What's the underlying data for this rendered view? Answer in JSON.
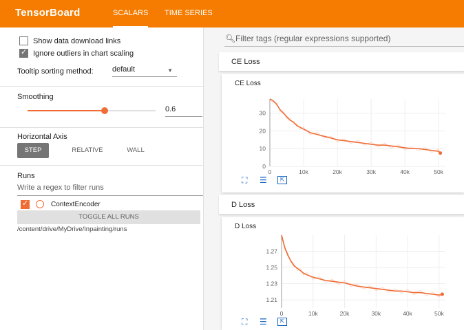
{
  "app": {
    "title": "TensorBoard"
  },
  "tabs": [
    {
      "label": "SCALARS"
    },
    {
      "label": "TIME SERIES"
    }
  ],
  "sidebar": {
    "show_download_label": "Show data download links",
    "ignore_outliers_label": "Ignore outliers in chart scaling",
    "tooltip_label": "Tooltip sorting method:",
    "tooltip_value": "default",
    "smoothing_label": "Smoothing",
    "smoothing_value": "0.6",
    "smoothing_fraction": 0.6,
    "haxis_label": "Horizontal Axis",
    "haxis_options": [
      "STEP",
      "RELATIVE",
      "WALL"
    ],
    "runs_label": "Runs",
    "runs_placeholder": "Write a regex to filter runs",
    "run_name": "ContextEncoder",
    "toggle_label": "TOGGLE ALL RUNS",
    "runs_path": "/content/drive/MyDrive/Inpainting/runs"
  },
  "main": {
    "filter_placeholder": "Filter tags (regular expressions supported)"
  },
  "colors": {
    "accent": "#f57c00",
    "series": "#ef6c35"
  },
  "chart_data": [
    {
      "type": "line",
      "group": "CE Loss",
      "title": "CE Loss",
      "x_ticks": [
        "0",
        "10k",
        "20k",
        "30k",
        "40k",
        "50k"
      ],
      "y_ticks": [
        "0",
        "10",
        "20",
        "30"
      ],
      "xlim": [
        0,
        52000
      ],
      "ylim": [
        0,
        38
      ],
      "series": [
        {
          "x": [
            0,
            1000,
            2000,
            3000,
            4000,
            5000,
            6000,
            7000,
            8000,
            9000,
            10000,
            12000,
            14000,
            16000,
            18000,
            20000,
            22000,
            24000,
            26000,
            28000,
            30000,
            32000,
            34000,
            36000,
            38000,
            40000,
            42000,
            44000,
            46000,
            48000,
            50000,
            50500
          ],
          "y": [
            40,
            37,
            35,
            32,
            30,
            28,
            26,
            25,
            23,
            22,
            21,
            19,
            18,
            17,
            16,
            15,
            14.5,
            14,
            13.5,
            13,
            12.5,
            12,
            12,
            11.5,
            11,
            10.5,
            10,
            10,
            9.5,
            9,
            8.5,
            7.5
          ]
        }
      ]
    },
    {
      "type": "line",
      "group": "D Loss",
      "title": "D Loss",
      "x_ticks": [
        "0",
        "10k",
        "20k",
        "30k",
        "40k",
        "50k"
      ],
      "y_ticks": [
        "1.21",
        "1.23",
        "1.25",
        "1.27"
      ],
      "xlim": [
        0,
        52000
      ],
      "ylim": [
        1.2,
        1.29
      ],
      "series": [
        {
          "x": [
            0,
            1000,
            2000,
            3000,
            4000,
            5000,
            6000,
            7000,
            8000,
            10000,
            12000,
            14000,
            16000,
            18000,
            20000,
            22000,
            24000,
            26000,
            28000,
            30000,
            32000,
            34000,
            36000,
            38000,
            40000,
            42000,
            44000,
            46000,
            48000,
            50000,
            51000
          ],
          "y": [
            1.29,
            1.275,
            1.265,
            1.258,
            1.252,
            1.249,
            1.246,
            1.243,
            1.241,
            1.238,
            1.236,
            1.234,
            1.233,
            1.232,
            1.231,
            1.229,
            1.227,
            1.226,
            1.225,
            1.224,
            1.223,
            1.222,
            1.221,
            1.221,
            1.22,
            1.219,
            1.219,
            1.218,
            1.217,
            1.216,
            1.217
          ]
        }
      ]
    }
  ]
}
